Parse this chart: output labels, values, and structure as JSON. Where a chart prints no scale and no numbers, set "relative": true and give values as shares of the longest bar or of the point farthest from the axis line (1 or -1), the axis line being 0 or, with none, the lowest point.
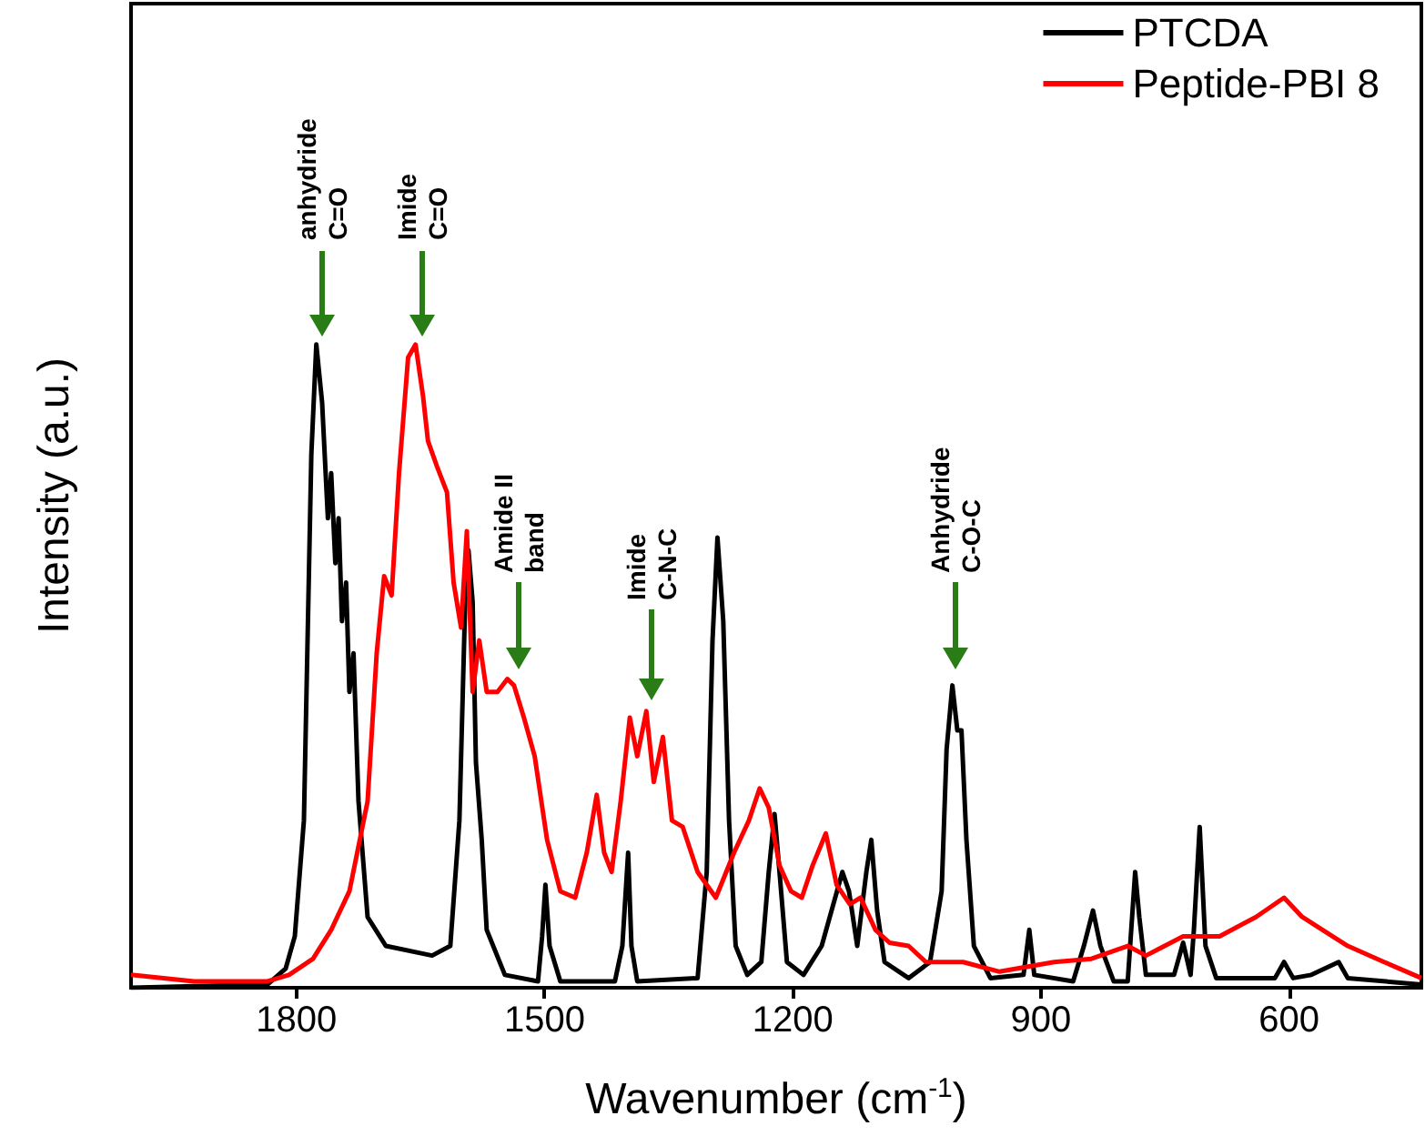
{
  "chart_data": {
    "type": "line",
    "relative": true,
    "xlabel": "Wavenumber (cm$^{-1}$)",
    "ylabel": "Intensity (a.u.)",
    "xlim": [
      2000,
      440
    ],
    "xticks": [
      1800,
      1500,
      1200,
      900,
      600
    ],
    "legend": "top right",
    "grid": false,
    "marker": "none",
    "series": [
      {
        "name": "PTCDA",
        "color": "#000000",
        "x": [
          2000,
          1835,
          1813,
          1802,
          1791,
          1782,
          1776,
          1769,
          1762,
          1758,
          1753,
          1749,
          1745,
          1740,
          1736,
          1731,
          1725,
          1714,
          1692,
          1636,
          1614,
          1603,
          1596,
          1592,
          1587,
          1583,
          1576,
          1570,
          1548,
          1508,
          1503,
          1499,
          1494,
          1481,
          1415,
          1406,
          1399,
          1395,
          1388,
          1315,
          1304,
          1297,
          1291,
          1284,
          1277,
          1269,
          1255,
          1238,
          1229,
          1222,
          1216,
          1207,
          1187,
          1165,
          1140,
          1132,
          1122,
          1111,
          1105,
          1098,
          1089,
          1060,
          1034,
          1020,
          1014,
          1007,
          1001,
          996,
          990,
          981,
          961,
          921,
          914,
          908,
          861,
          848,
          837,
          828,
          812,
          795,
          786,
          781,
          773,
          739,
          728,
          719,
          715,
          708,
          701,
          688,
          617,
          606,
          595,
          573,
          540,
          529,
          440
        ],
        "values": [
          0,
          0.005,
          0.03,
          0.08,
          0.26,
          0.83,
          1.0,
          0.91,
          0.73,
          0.8,
          0.66,
          0.73,
          0.57,
          0.63,
          0.46,
          0.52,
          0.29,
          0.11,
          0.065,
          0.05,
          0.065,
          0.26,
          0.6,
          0.68,
          0.6,
          0.35,
          0.23,
          0.09,
          0.02,
          0.01,
          0.08,
          0.16,
          0.065,
          0.01,
          0.01,
          0.065,
          0.21,
          0.065,
          0.01,
          0.015,
          0.18,
          0.54,
          0.7,
          0.57,
          0.26,
          0.065,
          0.02,
          0.04,
          0.18,
          0.27,
          0.18,
          0.04,
          0.02,
          0.065,
          0.18,
          0.15,
          0.065,
          0.18,
          0.23,
          0.12,
          0.04,
          0.015,
          0.04,
          0.15,
          0.37,
          0.47,
          0.4,
          0.4,
          0.23,
          0.065,
          0.015,
          0.02,
          0.09,
          0.02,
          0.01,
          0.065,
          0.12,
          0.065,
          0.01,
          0.01,
          0.18,
          0.11,
          0.02,
          0.02,
          0.07,
          0.02,
          0.09,
          0.25,
          0.065,
          0.015,
          0.015,
          0.04,
          0.015,
          0.02,
          0.04,
          0.015,
          0.005
        ]
      },
      {
        "name": "Peptide-PBI 8",
        "color": "#ff0000",
        "x": [
          2000,
          1924,
          1835,
          1809,
          1780,
          1758,
          1736,
          1714,
          1703,
          1694,
          1685,
          1676,
          1665,
          1656,
          1647,
          1641,
          1630,
          1618,
          1610,
          1601,
          1594,
          1587,
          1579,
          1570,
          1557,
          1545,
          1537,
          1525,
          1512,
          1497,
          1481,
          1463,
          1449,
          1437,
          1428,
          1419,
          1408,
          1397,
          1388,
          1377,
          1368,
          1357,
          1346,
          1333,
          1315,
          1293,
          1271,
          1253,
          1240,
          1229,
          1216,
          1202,
          1189,
          1176,
          1160,
          1147,
          1131,
          1118,
          1100,
          1083,
          1060,
          1039,
          994,
          950,
          884,
          839,
          795,
          773,
          728,
          684,
          640,
          606,
          584,
          529,
          485,
          440
        ],
        "values": [
          0.02,
          0.01,
          0.01,
          0.02,
          0.045,
          0.09,
          0.15,
          0.29,
          0.52,
          0.64,
          0.61,
          0.8,
          0.98,
          1.0,
          0.92,
          0.85,
          0.81,
          0.77,
          0.63,
          0.56,
          0.71,
          0.46,
          0.54,
          0.46,
          0.46,
          0.48,
          0.47,
          0.42,
          0.36,
          0.23,
          0.15,
          0.14,
          0.21,
          0.3,
          0.21,
          0.18,
          0.29,
          0.42,
          0.36,
          0.43,
          0.32,
          0.39,
          0.26,
          0.25,
          0.18,
          0.14,
          0.21,
          0.26,
          0.31,
          0.28,
          0.19,
          0.15,
          0.14,
          0.19,
          0.24,
          0.16,
          0.13,
          0.14,
          0.09,
          0.07,
          0.065,
          0.04,
          0.04,
          0.025,
          0.04,
          0.045,
          0.065,
          0.05,
          0.08,
          0.08,
          0.11,
          0.14,
          0.11,
          0.065,
          0.04,
          0.015
        ]
      }
    ],
    "annotations": [
      "anhydride\nC=O",
      "Imide\nC=O",
      "Amide II\nband",
      "Imide\nC-N-C",
      "Anhydride\nC-O-C"
    ]
  }
}
